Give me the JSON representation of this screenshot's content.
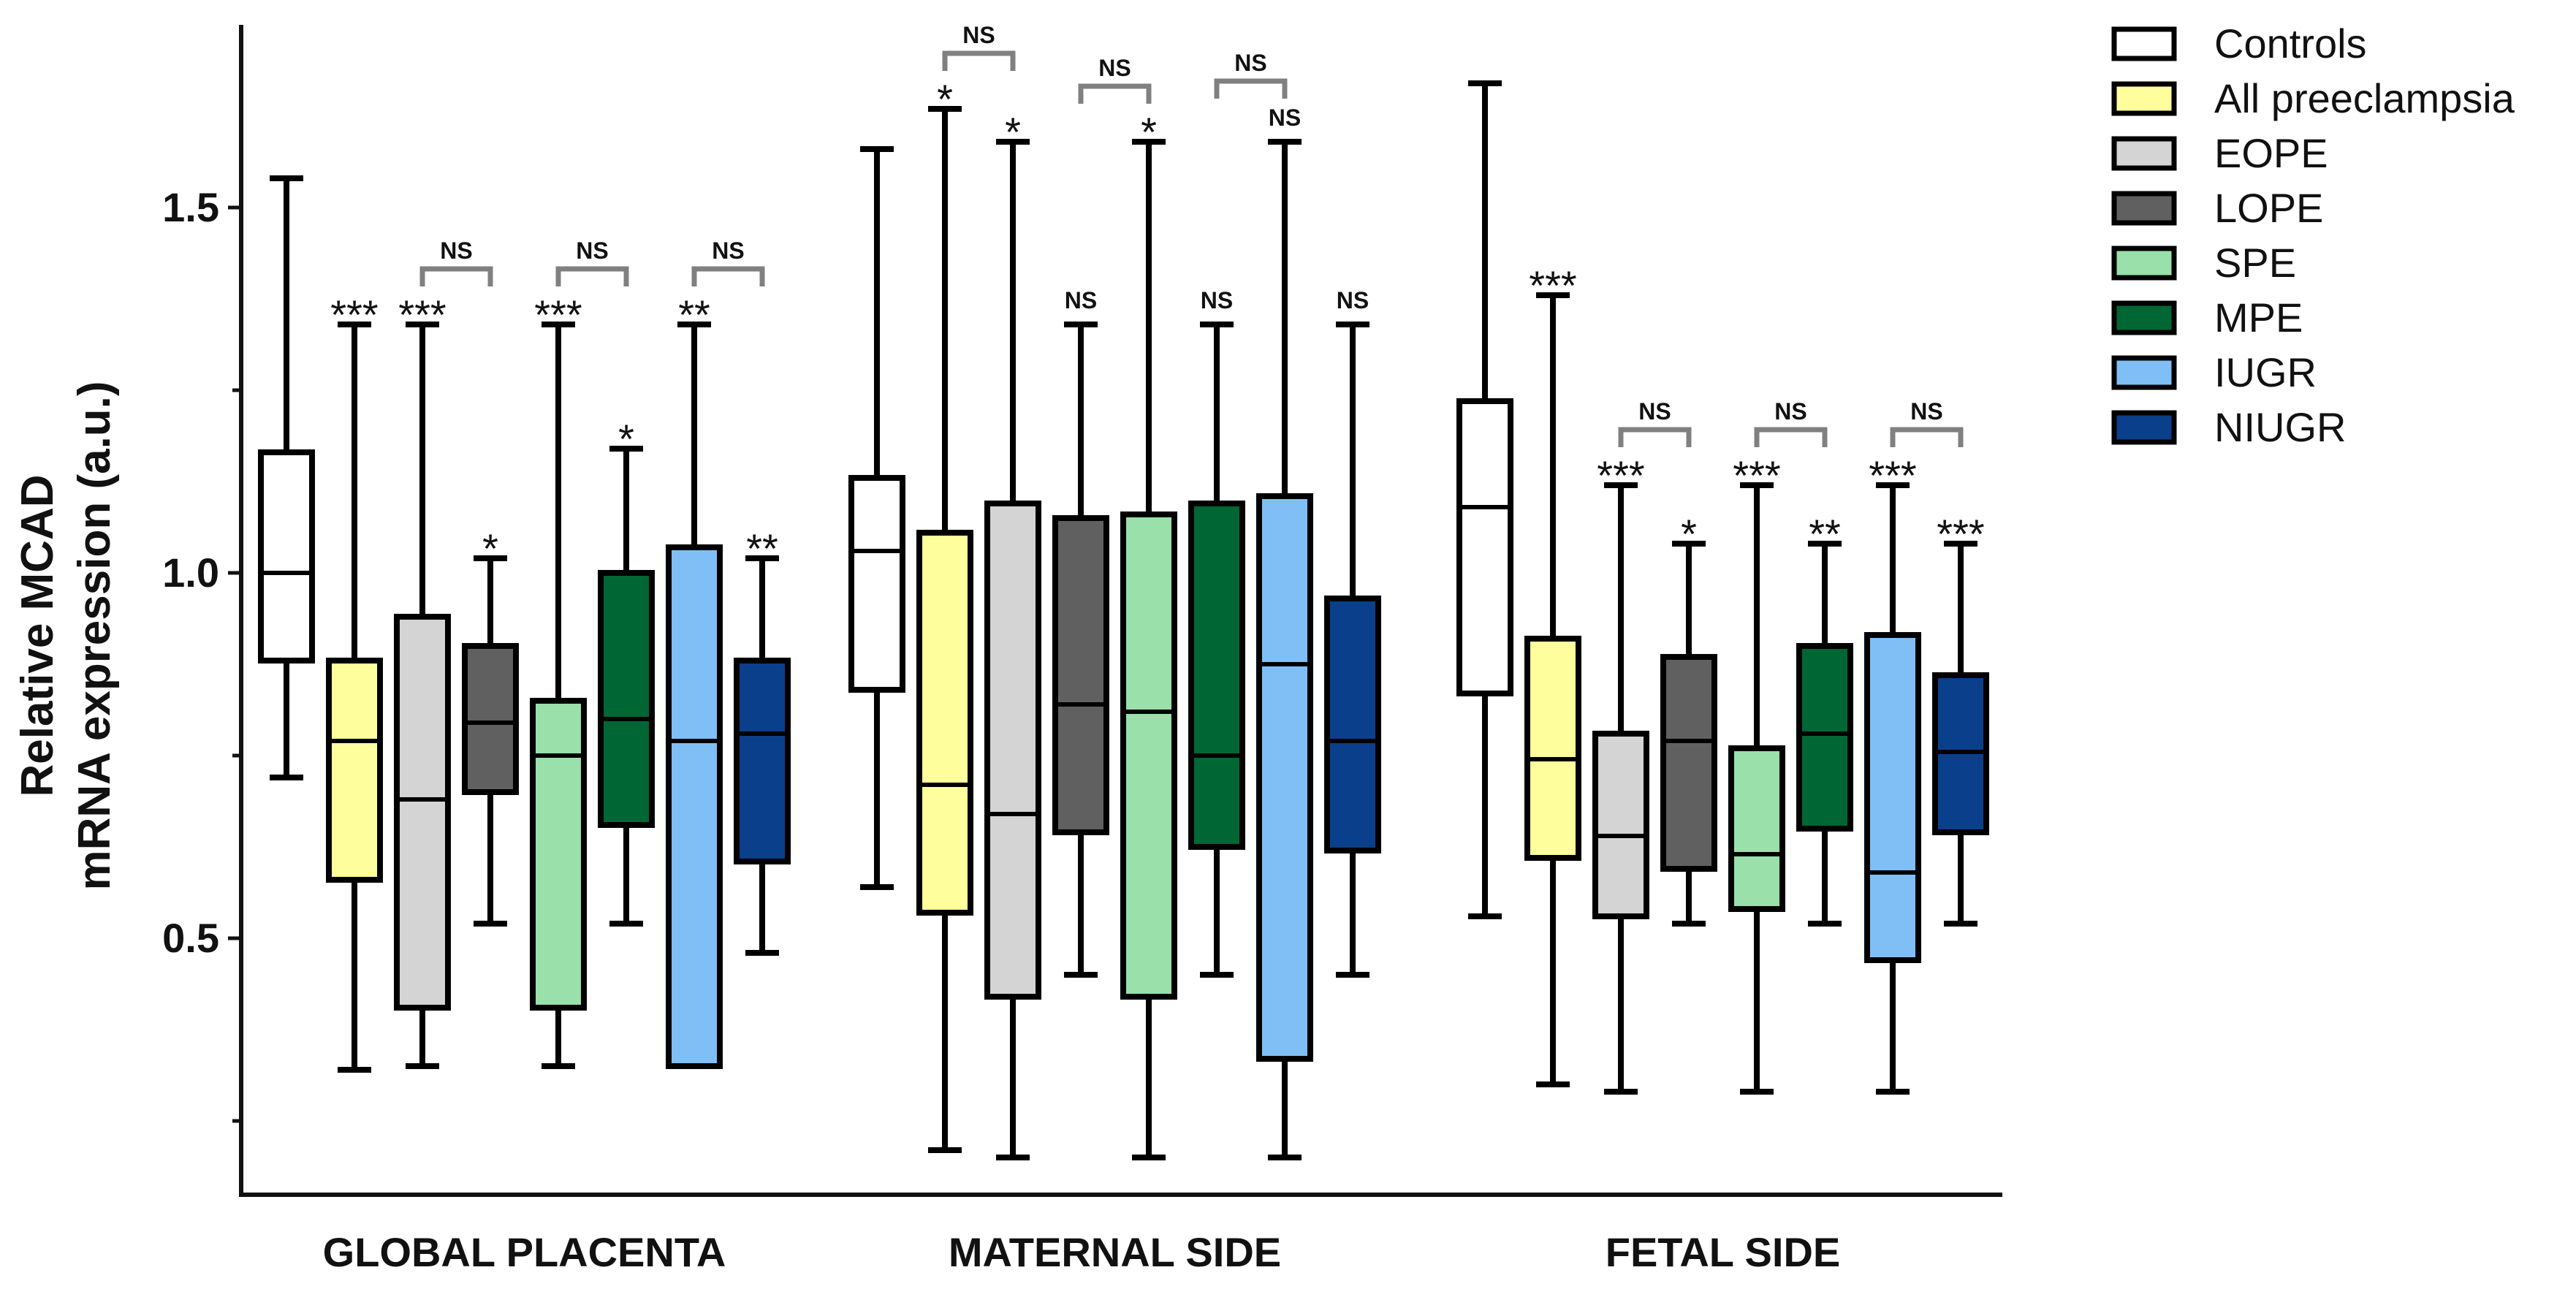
{
  "chart_data": {
    "type": "boxplot",
    "ylabel_line1": "Relative MCAD",
    "ylabel_line2": "mRNA expression (a.u.)",
    "ylim": [
      0.2,
      1.75
    ],
    "yticks": [
      0.5,
      1.0,
      1.5
    ],
    "ytick_labels": [
      "0.5",
      "1.0",
      "1.5"
    ],
    "ytick_minor": [
      0.25,
      0.75,
      1.25
    ],
    "series": [
      {
        "name": "Controls",
        "color": "#ffffff"
      },
      {
        "name": "All preeclampsia",
        "color": "#fffe9c"
      },
      {
        "name": "EOPE",
        "color": "#d4d4d4"
      },
      {
        "name": "LOPE",
        "color": "#606060"
      },
      {
        "name": "SPE",
        "color": "#99e0aa"
      },
      {
        "name": "MPE",
        "color": "#006633"
      },
      {
        "name": "IUGR",
        "color": "#80bff5"
      },
      {
        "name": "NIUGR",
        "color": "#0a3f8c"
      }
    ],
    "groups": [
      {
        "label": "GLOBAL PLACENTA",
        "boxes": [
          {
            "series": 0,
            "min": 0.72,
            "q1": 0.88,
            "median": 1.0,
            "q3": 1.165,
            "max": 1.54,
            "sig": ""
          },
          {
            "series": 1,
            "min": 0.32,
            "q1": 0.58,
            "median": 0.77,
            "q3": 0.88,
            "max": 1.34,
            "sig": "***"
          },
          {
            "series": 2,
            "min": 0.325,
            "q1": 0.405,
            "median": 0.69,
            "q3": 0.94,
            "max": 1.34,
            "sig": "***"
          },
          {
            "series": 3,
            "min": 0.52,
            "q1": 0.7,
            "median": 0.795,
            "q3": 0.9,
            "max": 1.02,
            "sig": "*"
          },
          {
            "series": 4,
            "min": 0.325,
            "q1": 0.405,
            "median": 0.75,
            "q3": 0.825,
            "max": 1.34,
            "sig": "***"
          },
          {
            "series": 5,
            "min": 0.52,
            "q1": 0.655,
            "median": 0.8,
            "q3": 1.0,
            "max": 1.17,
            "sig": "*"
          },
          {
            "series": 6,
            "min": 0.325,
            "q1": 0.325,
            "median": 0.77,
            "q3": 1.035,
            "max": 1.34,
            "sig": "**"
          },
          {
            "series": 7,
            "min": 0.48,
            "q1": 0.605,
            "median": 0.78,
            "q3": 0.88,
            "max": 1.02,
            "sig": "**"
          }
        ],
        "ns_brackets": [
          {
            "from": 2,
            "to": 3,
            "label": "NS"
          },
          {
            "from": 4,
            "to": 5,
            "label": "NS"
          },
          {
            "from": 6,
            "to": 7,
            "label": "NS"
          }
        ]
      },
      {
        "label": "MATERNAL SIDE",
        "boxes": [
          {
            "series": 0,
            "min": 0.57,
            "q1": 0.84,
            "median": 1.03,
            "q3": 1.13,
            "max": 1.58,
            "sig": ""
          },
          {
            "series": 1,
            "min": 0.21,
            "q1": 0.535,
            "median": 0.71,
            "q3": 1.055,
            "max": 1.635,
            "sig": "*"
          },
          {
            "series": 2,
            "min": 0.2,
            "q1": 0.42,
            "median": 0.67,
            "q3": 1.095,
            "max": 1.59,
            "sig": "*"
          },
          {
            "series": 3,
            "min": 0.45,
            "q1": 0.645,
            "median": 0.82,
            "q3": 1.075,
            "max": 1.34,
            "sig": "NS"
          },
          {
            "series": 4,
            "min": 0.2,
            "q1": 0.42,
            "median": 0.81,
            "q3": 1.08,
            "max": 1.59,
            "sig": "*"
          },
          {
            "series": 5,
            "min": 0.45,
            "q1": 0.625,
            "median": 0.75,
            "q3": 1.095,
            "max": 1.34,
            "sig": "NS"
          },
          {
            "series": 6,
            "min": 0.2,
            "q1": 0.335,
            "median": 0.875,
            "q3": 1.105,
            "max": 1.59,
            "sig": "NS"
          },
          {
            "series": 7,
            "min": 0.45,
            "q1": 0.62,
            "median": 0.77,
            "q3": 0.965,
            "max": 1.34,
            "sig": "NS"
          }
        ],
        "ns_brackets": [
          {
            "from": 1,
            "to": 2,
            "label": "NS"
          },
          {
            "from": 3,
            "to": 4,
            "label": "NS"
          },
          {
            "from": 5,
            "to": 6,
            "label": "NS"
          }
        ]
      },
      {
        "label": "FETAL SIDE",
        "boxes": [
          {
            "series": 0,
            "min": 0.53,
            "q1": 0.835,
            "median": 1.09,
            "q3": 1.235,
            "max": 1.67,
            "sig": ""
          },
          {
            "series": 1,
            "min": 0.3,
            "q1": 0.61,
            "median": 0.745,
            "q3": 0.91,
            "max": 1.38,
            "sig": "***"
          },
          {
            "series": 2,
            "min": 0.29,
            "q1": 0.53,
            "median": 0.64,
            "q3": 0.78,
            "max": 1.12,
            "sig": "***"
          },
          {
            "series": 3,
            "min": 0.52,
            "q1": 0.595,
            "median": 0.77,
            "q3": 0.885,
            "max": 1.04,
            "sig": "*"
          },
          {
            "series": 4,
            "min": 0.29,
            "q1": 0.54,
            "median": 0.615,
            "q3": 0.76,
            "max": 1.12,
            "sig": "***"
          },
          {
            "series": 5,
            "min": 0.52,
            "q1": 0.65,
            "median": 0.78,
            "q3": 0.9,
            "max": 1.04,
            "sig": "**"
          },
          {
            "series": 6,
            "min": 0.29,
            "q1": 0.47,
            "median": 0.59,
            "q3": 0.915,
            "max": 1.12,
            "sig": "***"
          },
          {
            "series": 7,
            "min": 0.52,
            "q1": 0.645,
            "median": 0.755,
            "q3": 0.86,
            "max": 1.04,
            "sig": "***"
          }
        ],
        "ns_brackets": [
          {
            "from": 2,
            "to": 3,
            "label": "NS"
          },
          {
            "from": 4,
            "to": 5,
            "label": "NS"
          },
          {
            "from": 6,
            "to": 7,
            "label": "NS"
          }
        ]
      }
    ]
  }
}
